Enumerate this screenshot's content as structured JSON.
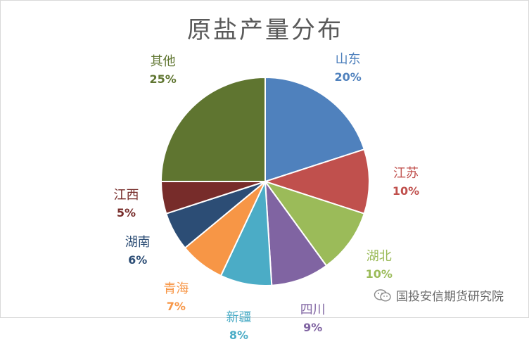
{
  "chart_data": {
    "type": "pie",
    "title": "原盐产量分布",
    "slices": [
      {
        "label": "山东",
        "value": 20,
        "pct_text": "20%",
        "color": "#4F81BD"
      },
      {
        "label": "江苏",
        "value": 10,
        "pct_text": "10%",
        "color": "#C0504D"
      },
      {
        "label": "湖北",
        "value": 10,
        "pct_text": "10%",
        "color": "#9BBB59"
      },
      {
        "label": "四川",
        "value": 9,
        "pct_text": "9%",
        "color": "#8064A2"
      },
      {
        "label": "新疆",
        "value": 8,
        "pct_text": "8%",
        "color": "#4BACC6"
      },
      {
        "label": "青海",
        "value": 7,
        "pct_text": "7%",
        "color": "#F79646"
      },
      {
        "label": "湖南",
        "value": 6,
        "pct_text": "6%",
        "color": "#2C4D75"
      },
      {
        "label": "江西",
        "value": 5,
        "pct_text": "5%",
        "color": "#772C2A"
      },
      {
        "label": "其他",
        "value": 25,
        "pct_text": "25%",
        "color": "#5F7530"
      }
    ]
  },
  "watermark": {
    "text": "国投安信期货研究院",
    "icon": "wechat-icon"
  }
}
